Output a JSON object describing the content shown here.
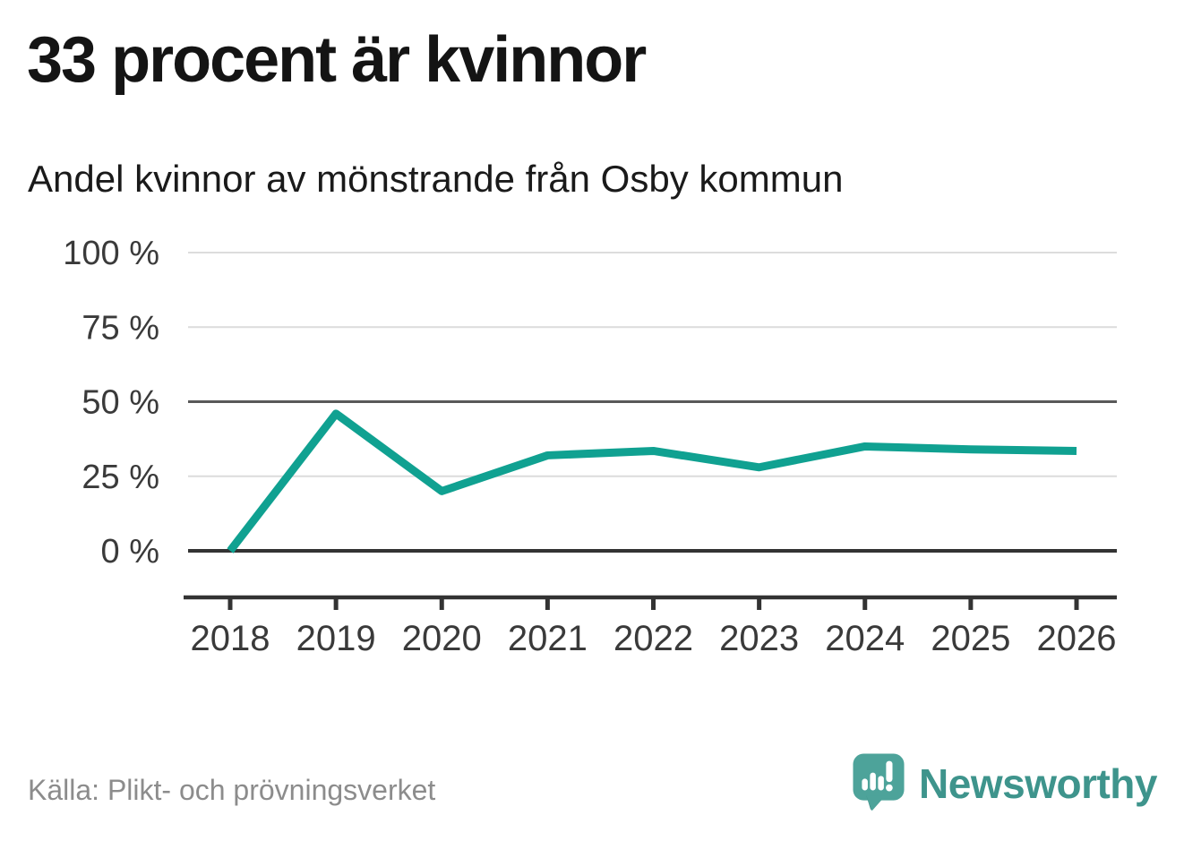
{
  "header": {
    "title": "33 procent är kvinnor",
    "subtitle": "Andel kvinnor av mönstrande från Osby kommun"
  },
  "footer": {
    "source": "Källa: Plikt- och prövningsverket",
    "brand": "Newsworthy"
  },
  "colors": {
    "line": "#10a191",
    "grid_light": "#dcdcdc",
    "grid_mid": "#595959",
    "axis_dark": "#333333",
    "tick_label": "#3a3a3a",
    "source_text": "#8c8c8c",
    "brand_teal": "#3e948c",
    "logo_bubble": "#4da39a",
    "logo_bubble_shade": "#3c8b84"
  },
  "chart_data": {
    "type": "line",
    "title": "Andel kvinnor av mönstrande från Osby kommun",
    "x": [
      "2018",
      "2019",
      "2020",
      "2021",
      "2022",
      "2023",
      "2024",
      "2025",
      "2026"
    ],
    "series": [
      {
        "name": "Andel kvinnor av mönstrande (%)",
        "values": [
          0,
          46,
          20,
          32,
          33.5,
          28,
          35,
          34,
          33.5
        ]
      }
    ],
    "xlabel": "",
    "ylabel": "",
    "ylim": [
      0,
      100
    ],
    "yticks": [
      {
        "value": 0,
        "label": "0 %"
      },
      {
        "value": 25,
        "label": "25 %"
      },
      {
        "value": 50,
        "label": "50 %"
      },
      {
        "value": 75,
        "label": "75 %"
      },
      {
        "value": 100,
        "label": "100 %"
      }
    ],
    "grid": "on",
    "emphasized_gridlines": [
      0,
      50
    ],
    "legend": "none",
    "markers": "none"
  }
}
